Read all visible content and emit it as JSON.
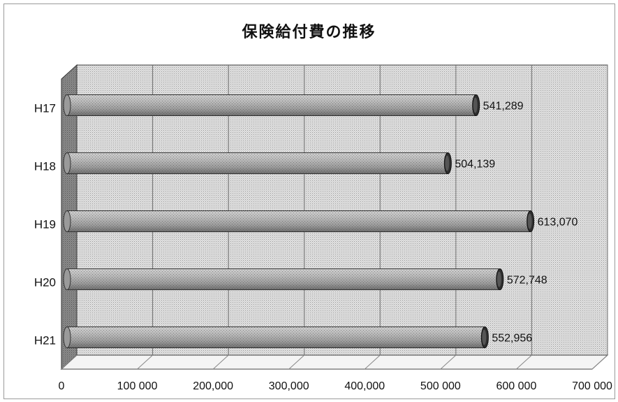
{
  "chart_data": {
    "type": "bar",
    "orientation": "horizontal",
    "title": "保険給付費の推移",
    "xlabel": "",
    "ylabel": "",
    "categories": [
      "H17",
      "H18",
      "H19",
      "H20",
      "H21"
    ],
    "values": [
      541289,
      504139,
      613070,
      572748,
      552956
    ],
    "value_labels": [
      "541,289",
      "504,139",
      "613,070",
      "572,748",
      "552,956"
    ],
    "xlim": [
      0,
      700000
    ],
    "x_ticks": [
      0,
      100000,
      200000,
      300000,
      400000,
      500000,
      600000,
      700000
    ],
    "x_tick_labels": [
      "0",
      "100 000",
      "200,000",
      "300,000",
      "400,000",
      "500 000",
      "600 000",
      "700 000"
    ],
    "grid": true,
    "legend": "none",
    "style": "3d-cylinder",
    "bar_color": "#a9a9a9",
    "wall_color": "#d6d6d6",
    "side_wall_color": "#777777"
  }
}
